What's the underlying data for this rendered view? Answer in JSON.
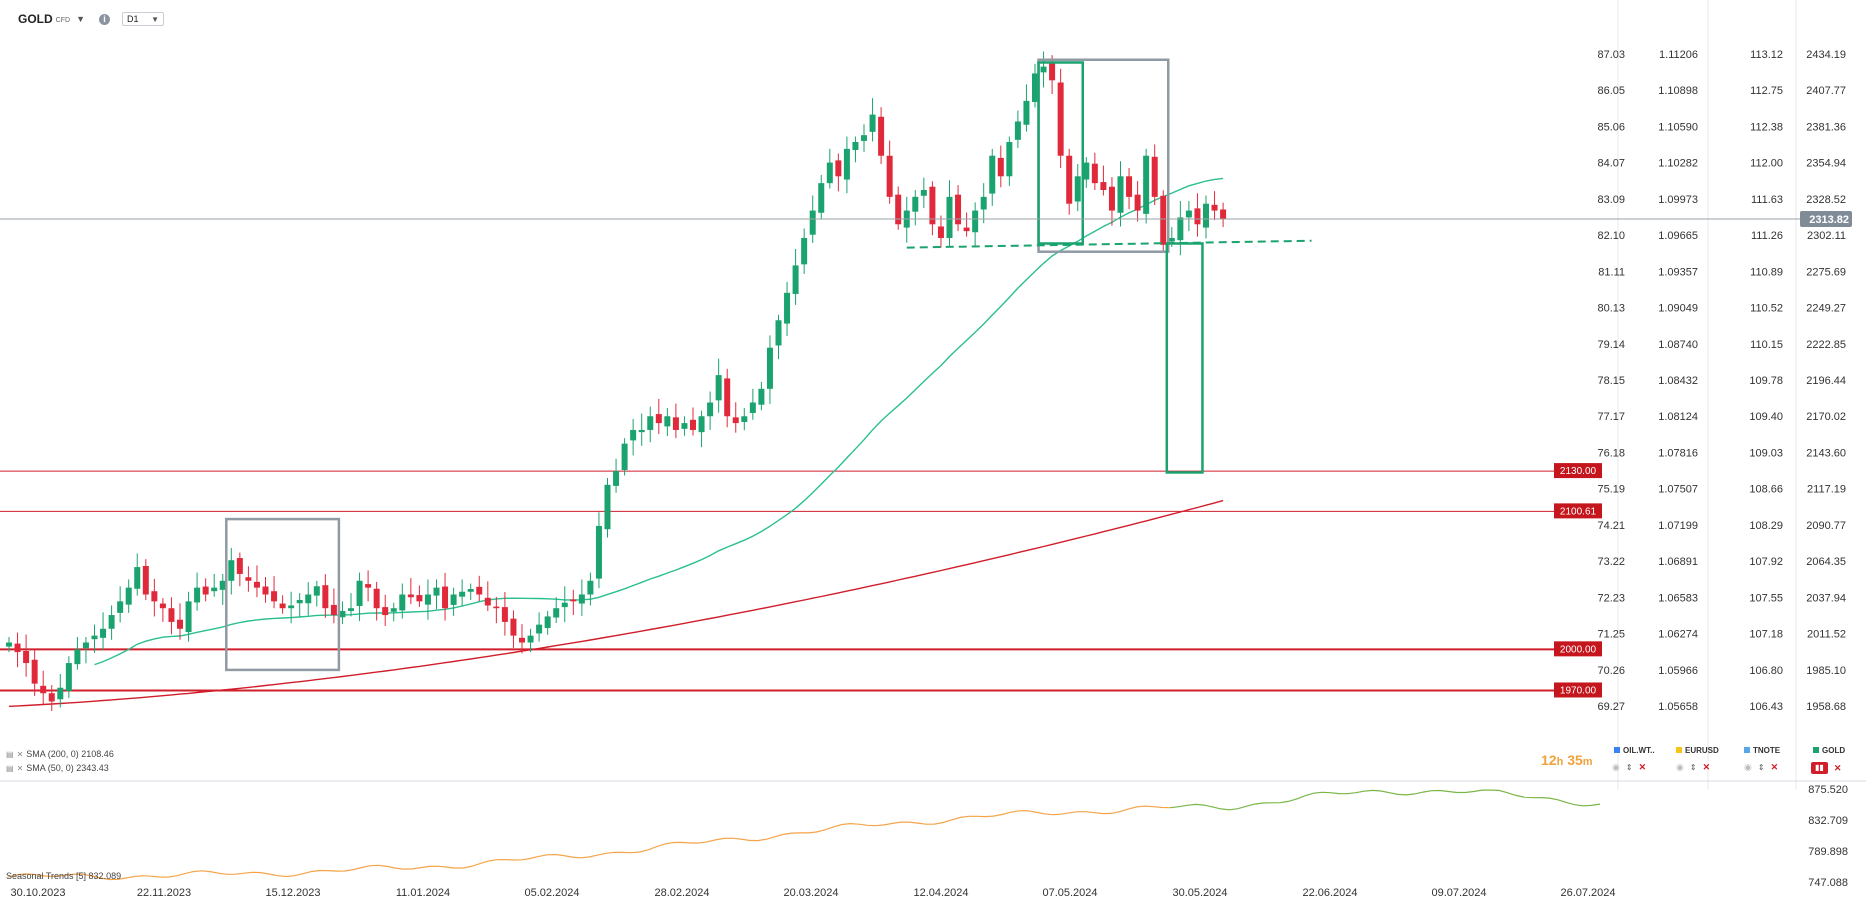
{
  "header": {
    "symbol": "GOLD",
    "symbol_suffix": "CFD",
    "timeframe": "D1"
  },
  "indicators": [
    {
      "label": "SMA (200, 0) 2108.46"
    },
    {
      "label": "SMA (50, 0) 2343.43"
    }
  ],
  "countdown": {
    "hours": "12",
    "h_unit": "h",
    "minutes": "35",
    "m_unit": "m"
  },
  "comparisons": [
    {
      "name": "OIL.WT..",
      "color": "#3b82f6",
      "active": false
    },
    {
      "name": "EURUSD",
      "color": "#f5c518",
      "active": false
    },
    {
      "name": "TNOTE",
      "color": "#5aa7e8",
      "active": false
    },
    {
      "name": "GOLD",
      "color": "#1aa36e",
      "active": true
    }
  ],
  "seasonal_label": "Seasonal  Trends [5] 832.089",
  "chart_data": [
    {
      "type": "candlestick",
      "instrument": "GOLD CFD",
      "timeframe": "D1",
      "x_tick_labels": [
        "30.10.2023",
        "22.11.2023",
        "15.12.2023",
        "11.01.2024",
        "05.02.2024",
        "28.02.2024",
        "20.03.2024",
        "12.04.2024",
        "07.05.2024",
        "30.05.2024",
        "22.06.2024",
        "09.07.2024",
        "26.07.2024"
      ],
      "price_axis": [
        "2434.19",
        "2407.77",
        "2381.36",
        "2354.94",
        "2328.52",
        "2302.11",
        "2275.69",
        "2249.27",
        "2222.85",
        "2196.44",
        "2170.02",
        "2143.60",
        "2117.19",
        "2090.77",
        "2064.35",
        "2037.94",
        "2011.52",
        "1985.10",
        "1958.68"
      ],
      "price_range": [
        1958.68,
        2434.19
      ],
      "compare_axes": [
        [
          "87.03",
          "86.05",
          "85.06",
          "84.07",
          "83.09",
          "82.10",
          "81.11",
          "80.13",
          "79.14",
          "78.15",
          "77.17",
          "76.18",
          "75.19",
          "74.21",
          "73.22",
          "72.23",
          "71.25",
          "70.26",
          "69.27"
        ],
        [
          "1.11206",
          "1.10898",
          "1.10590",
          "1.10282",
          "1.09973",
          "1.09665",
          "1.09357",
          "1.09049",
          "1.08740",
          "1.08432",
          "1.08124",
          "1.07816",
          "1.07507",
          "1.07199",
          "1.06891",
          "1.06583",
          "1.06274",
          "1.05966",
          "1.05658"
        ],
        [
          "113.12",
          "112.75",
          "112.38",
          "112.00",
          "111.63",
          "111.26",
          "110.89",
          "110.52",
          "110.15",
          "109.78",
          "109.40",
          "109.03",
          "108.66",
          "108.29",
          "107.92",
          "107.55",
          "107.18",
          "106.80",
          "106.43"
        ]
      ],
      "current_price": "2313.82",
      "closes": [
        2005,
        1998,
        1990,
        1975,
        1968,
        1962,
        1972,
        1990,
        2000,
        2005,
        2010,
        2015,
        2025,
        2035,
        2045,
        2060,
        2040,
        2035,
        2030,
        2020,
        2015,
        2035,
        2045,
        2040,
        2045,
        2050,
        2065,
        2055,
        2050,
        2045,
        2040,
        2035,
        2030,
        2032,
        2036,
        2040,
        2046,
        2030,
        2025,
        2028,
        2030,
        2050,
        2045,
        2030,
        2025,
        2030,
        2040,
        2038,
        2035,
        2040,
        2045,
        2030,
        2040,
        2042,
        2044,
        2040,
        2032,
        2030,
        2020,
        2010,
        2005,
        2010,
        2018,
        2024,
        2030,
        2034,
        2035,
        2040,
        2050,
        2090,
        2120,
        2130,
        2150,
        2160,
        2160,
        2170,
        2165,
        2170,
        2160,
        2165,
        2160,
        2170,
        2180,
        2200,
        2170,
        2165,
        2170,
        2180,
        2190,
        2220,
        2240,
        2260,
        2280,
        2300,
        2320,
        2340,
        2355,
        2345,
        2365,
        2370,
        2375,
        2390,
        2360,
        2330,
        2310,
        2320,
        2330,
        2335,
        2310,
        2300,
        2330,
        2310,
        2305,
        2320,
        2330,
        2360,
        2345,
        2370,
        2385,
        2400,
        2420,
        2425,
        2415,
        2360,
        2325,
        2345,
        2355,
        2340,
        2335,
        2320,
        2345,
        2330,
        2320,
        2360,
        2330,
        2295,
        2300,
        2315,
        2320,
        2310,
        2325,
        2320,
        2314
      ],
      "sma50_end": 2343.43,
      "sma200_end": 2108.46,
      "horizontal_levels": [
        {
          "label": "2130.00",
          "value": 2130.0
        },
        {
          "label": "2100.61",
          "value": 2100.61
        },
        {
          "label": "2000.00",
          "value": 2000.0
        },
        {
          "label": "1970.00",
          "value": 1970.0
        }
      ],
      "annotations": [
        {
          "kind": "gray-box",
          "from_index": 26,
          "to_index": 38,
          "low": 1985,
          "high": 2095
        },
        {
          "kind": "gray-box",
          "from_index": 121,
          "to_index": 135,
          "low": 2290,
          "high": 2430
        },
        {
          "kind": "green-box",
          "from_index": 121,
          "to_index": 125,
          "low": 2296,
          "high": 2428
        },
        {
          "kind": "green-box",
          "from_index": 136,
          "to_index": 139,
          "low": 2129,
          "high": 2296
        },
        {
          "kind": "dashed-neckline",
          "from_index": 105,
          "to_index": 150,
          "value_start": 2293,
          "value_end": 2298
        }
      ]
    },
    {
      "type": "line",
      "title": "Seasonal Trends [5]",
      "last_value": "832.089",
      "y_tick_labels": [
        "875.520",
        "832.709",
        "789.898",
        "747.088"
      ],
      "ylim": [
        747.088,
        875.52
      ]
    }
  ]
}
